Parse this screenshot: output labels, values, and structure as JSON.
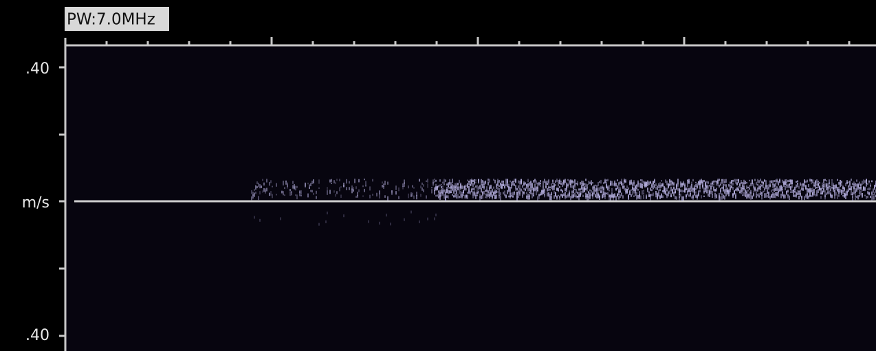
{
  "header": {
    "mode": "PW:7.0MHz"
  },
  "scale": {
    "top": ".40",
    "unit": "m/s",
    "bottom": ".40"
  }
}
